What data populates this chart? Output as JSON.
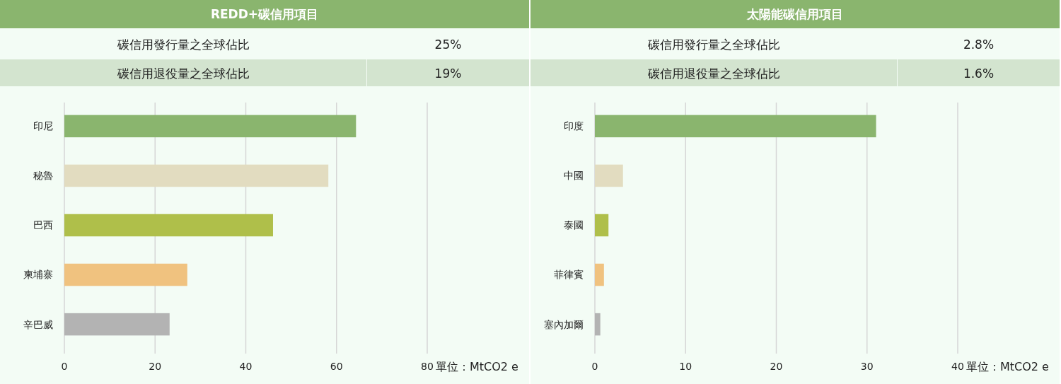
{
  "chart_data": [
    {
      "type": "bar",
      "title": "REDD+碳信用項目",
      "orientation": "horizontal",
      "categories": [
        "印尼",
        "秘魯",
        "巴西",
        "柬埔寨",
        "辛巴威"
      ],
      "values": [
        64.3,
        58.2,
        46,
        27.1,
        23.2
      ],
      "colors": [
        "#8ab56e",
        "#e2dcc0",
        "#afbf4a",
        "#f0c27f",
        "#b3b3b3"
      ],
      "xlim": [
        0,
        80
      ],
      "xticks": [
        0,
        20,
        40,
        60,
        80
      ],
      "grid": "x",
      "xlabel": "單位：MtCO2 e",
      "annotations": [
        "碳信用發行量之全球佔比",
        "25%",
        "碳信用退役量之全球佔比",
        "19%"
      ]
    },
    {
      "type": "bar",
      "title": "太陽能碳信用項目",
      "orientation": "horizontal",
      "categories": [
        "印度",
        "中國",
        "泰國",
        "菲律賓",
        "塞內加爾"
      ],
      "values": [
        31,
        3.1,
        1.5,
        1,
        0.6
      ],
      "colors": [
        "#8ab56e",
        "#e2dcc0",
        "#afbf4a",
        "#f0c27f",
        "#b3b3b3"
      ],
      "xlim": [
        0,
        40
      ],
      "xticks": [
        0,
        10,
        20,
        30,
        40
      ],
      "grid": "x",
      "xlabel": "單位：MtCO2 e",
      "annotations": [
        "碳信用發行量之全球佔比",
        "2.8%",
        "碳信用退役量之全球佔比",
        "1.6%"
      ]
    }
  ]
}
